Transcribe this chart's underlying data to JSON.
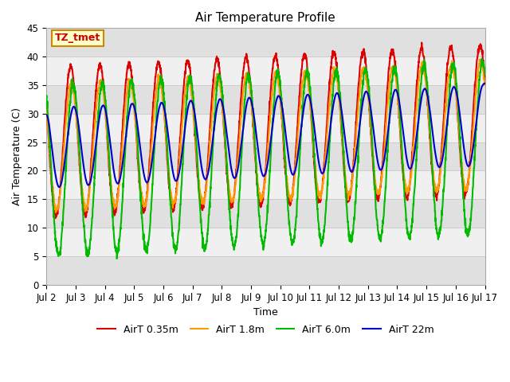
{
  "title": "Air Temperature Profile",
  "xlabel": "Time",
  "ylabel": "Air Temperature (C)",
  "ylim": [
    0,
    45
  ],
  "xlim_days": [
    2,
    17
  ],
  "x_ticks": [
    2,
    3,
    4,
    5,
    6,
    7,
    8,
    9,
    10,
    11,
    12,
    13,
    14,
    15,
    16,
    17
  ],
  "x_tick_labels": [
    "Jul 2",
    "Jul 3",
    "Jul 4",
    "Jul 5",
    "Jul 6",
    "Jul 7",
    "Jul 8",
    "Jul 9",
    "Jul 10",
    "Jul 11",
    "Jul 12",
    "Jul 13",
    "Jul 14",
    "Jul 15",
    "Jul 16",
    "Jul 17"
  ],
  "y_ticks": [
    0,
    5,
    10,
    15,
    20,
    25,
    30,
    35,
    40,
    45
  ],
  "annotation_text": "TZ_tmet",
  "annotation_box_facecolor": "#ffffcc",
  "annotation_box_edgecolor": "#cc8800",
  "annotation_text_color": "#cc0000",
  "lines": [
    {
      "label": "AirT 0.35m",
      "color": "#dd0000",
      "lw": 1.5
    },
    {
      "label": "AirT 1.8m",
      "color": "#ff9900",
      "lw": 1.5
    },
    {
      "label": "AirT 6.0m",
      "color": "#00bb00",
      "lw": 1.5
    },
    {
      "label": "AirT 22m",
      "color": "#0000cc",
      "lw": 1.5
    }
  ],
  "background_color": "#ffffff",
  "plot_bg_light": "#f0f0f0",
  "plot_bg_dark": "#e0e0e0",
  "grid_color": "#cccccc",
  "legend_ncol": 4
}
